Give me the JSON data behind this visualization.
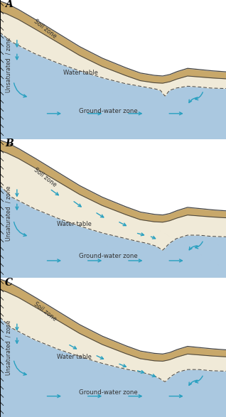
{
  "panels": [
    "A",
    "B",
    "C"
  ],
  "bg_color": "#eee8d8",
  "water_color": "#aac8e0",
  "soil_color": "#c8a86a",
  "unsaturated_color": "#f0ead8",
  "border_color": "#444444",
  "dashed_color": "#666666",
  "arrow_color": "#28a0c0",
  "text_color": "#333333",
  "panel_bg": "#ffffff",
  "panel_label_fontsize": 10,
  "label_fontsize": 6.0
}
